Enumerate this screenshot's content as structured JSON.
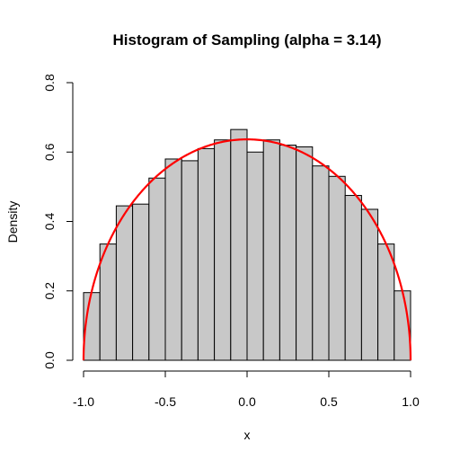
{
  "chart_data": {
    "type": "bar",
    "title": "Histogram of Sampling (alpha = 3.14)",
    "xlabel": "x",
    "ylabel": "Density",
    "xlim": [
      -1.0,
      1.0
    ],
    "ylim": [
      0,
      0.8
    ],
    "x_ticks": [
      "-1.0",
      "-0.5",
      "0.0",
      "0.5",
      "1.0"
    ],
    "x_tick_values": [
      -1.0,
      -0.5,
      0.0,
      0.5,
      1.0
    ],
    "y_ticks": [
      "0.0",
      "0.2",
      "0.4",
      "0.6",
      "0.8"
    ],
    "y_tick_values": [
      0.0,
      0.2,
      0.4,
      0.6,
      0.8
    ],
    "bin_edges": [
      -1.0,
      -0.9,
      -0.8,
      -0.7,
      -0.6,
      -0.5,
      -0.4,
      -0.3,
      -0.2,
      -0.1,
      0.0,
      0.1,
      0.2,
      0.3,
      0.4,
      0.5,
      0.6,
      0.7,
      0.8,
      0.9,
      1.0
    ],
    "values": [
      0.195,
      0.335,
      0.445,
      0.45,
      0.525,
      0.58,
      0.575,
      0.61,
      0.635,
      0.665,
      0.6,
      0.635,
      0.62,
      0.615,
      0.56,
      0.53,
      0.475,
      0.435,
      0.335,
      0.2
    ],
    "overlay_curve": {
      "type": "line",
      "function": "semicircle density: (2/pi) * sqrt(1 - x^2)",
      "peak": 0.6366,
      "color": "#ff0000"
    },
    "bar_fill": "#c8c8c8",
    "grid": false
  }
}
